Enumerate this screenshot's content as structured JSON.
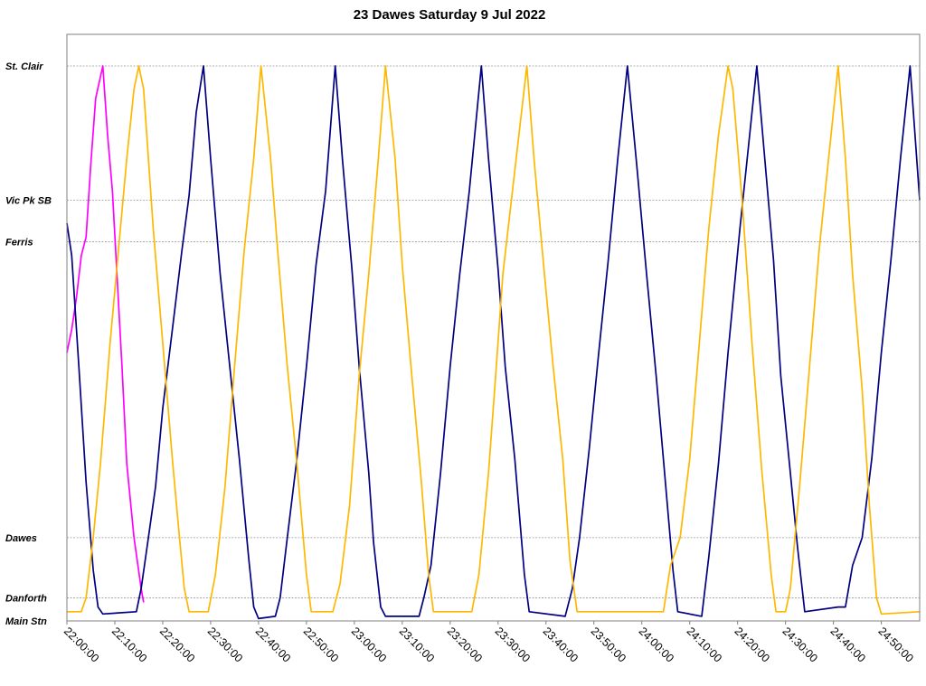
{
  "chart_data": {
    "type": "line",
    "title": "23 Dawes Saturday 9 Jul 2022",
    "xlabel": "",
    "ylabel": "",
    "x_ticks": [
      "22:00:00",
      "22:10:00",
      "22:20:00",
      "22:30:00",
      "22:40:00",
      "22:50:00",
      "23:00:00",
      "23:10:00",
      "23:20:00",
      "23:30:00",
      "23:40:00",
      "23:50:00",
      "24:00:00",
      "24:10:00",
      "24:20:00",
      "24:30:00",
      "24:40:00",
      "24:50:00"
    ],
    "xlim": [
      "22:00:00",
      "24:58:00"
    ],
    "y_stops": [
      {
        "label": "St. Clair",
        "value": 12.0,
        "gridline": true
      },
      {
        "label": "Vic Pk SB",
        "value": 9.1,
        "gridline": true
      },
      {
        "label": "Ferris",
        "value": 8.2,
        "gridline": true
      },
      {
        "label": "Dawes",
        "value": 1.8,
        "gridline": true
      },
      {
        "label": "Danforth",
        "value": 0.5,
        "gridline": true
      },
      {
        "label": "Main Stn",
        "value": 0.0,
        "gridline": false
      }
    ],
    "ylim": [
      0,
      12.6
    ],
    "grid": true,
    "legend": "none",
    "series": [
      {
        "color": "#ff00ff",
        "points": [
          [
            "22:00:00",
            5.8
          ],
          [
            "22:01:00",
            6.3
          ],
          [
            "22:02:00",
            7.0
          ],
          [
            "22:03:00",
            7.9
          ],
          [
            "22:04:00",
            8.3
          ],
          [
            "22:05:00",
            9.9
          ],
          [
            "22:06:00",
            11.3
          ],
          [
            "22:07:30",
            12.0
          ],
          [
            "22:08:30",
            10.5
          ],
          [
            "22:09:30",
            9.3
          ],
          [
            "22:10:30",
            7.4
          ],
          [
            "22:11:30",
            5.5
          ],
          [
            "22:12:30",
            3.4
          ],
          [
            "22:14:00",
            1.8
          ],
          [
            "22:15:30",
            0.7
          ],
          [
            "22:16:00",
            0.4
          ]
        ]
      },
      {
        "color": "#000080",
        "points": [
          [
            "22:00:00",
            8.6
          ],
          [
            "22:01:00",
            7.9
          ],
          [
            "22:02:30",
            5.5
          ],
          [
            "22:04:00",
            3.0
          ],
          [
            "22:05:30",
            1.1
          ],
          [
            "22:06:30",
            0.3
          ],
          [
            "22:07:30",
            0.15
          ],
          [
            "22:14:30",
            0.2
          ],
          [
            "22:15:30",
            0.7
          ],
          [
            "22:17:00",
            1.8
          ],
          [
            "22:18:30",
            2.9
          ],
          [
            "22:20:00",
            4.6
          ],
          [
            "22:22:00",
            6.3
          ],
          [
            "22:24:00",
            8.0
          ],
          [
            "22:25:30",
            9.2
          ],
          [
            "22:27:00",
            11.0
          ],
          [
            "22:28:30",
            12.0
          ],
          [
            "22:30:00",
            10.0
          ],
          [
            "22:32:00",
            7.5
          ],
          [
            "22:34:00",
            5.5
          ],
          [
            "22:36:00",
            3.5
          ],
          [
            "22:38:00",
            1.3
          ],
          [
            "22:39:00",
            0.3
          ],
          [
            "22:40:00",
            0.05
          ],
          [
            "22:43:30",
            0.1
          ],
          [
            "22:44:30",
            0.5
          ],
          [
            "22:46:00",
            1.8
          ],
          [
            "22:48:00",
            3.5
          ],
          [
            "22:50:00",
            5.5
          ],
          [
            "22:52:00",
            7.7
          ],
          [
            "22:54:00",
            9.3
          ],
          [
            "22:56:00",
            12.0
          ],
          [
            "22:57:30",
            10.0
          ],
          [
            "22:59:30",
            7.6
          ],
          [
            "23:01:00",
            5.5
          ],
          [
            "23:03:00",
            3.2
          ],
          [
            "23:04:00",
            1.7
          ],
          [
            "23:05:30",
            0.3
          ],
          [
            "23:06:30",
            0.1
          ],
          [
            "23:13:30",
            0.1
          ],
          [
            "23:14:30",
            0.5
          ],
          [
            "23:16:00",
            1.2
          ],
          [
            "23:18:00",
            3.2
          ],
          [
            "23:20:00",
            5.5
          ],
          [
            "23:22:00",
            7.5
          ],
          [
            "23:24:00",
            9.3
          ],
          [
            "23:26:30",
            12.0
          ],
          [
            "23:28:00",
            10.0
          ],
          [
            "23:30:00",
            7.6
          ],
          [
            "23:31:30",
            5.5
          ],
          [
            "23:33:30",
            3.5
          ],
          [
            "23:35:30",
            1.0
          ],
          [
            "23:36:30",
            0.2
          ],
          [
            "23:44:00",
            0.1
          ],
          [
            "23:45:30",
            0.7
          ],
          [
            "23:47:00",
            1.8
          ],
          [
            "23:49:00",
            3.7
          ],
          [
            "23:51:00",
            5.8
          ],
          [
            "23:53:00",
            7.8
          ],
          [
            "23:55:00",
            10.0
          ],
          [
            "23:57:00",
            12.0
          ],
          [
            "23:59:00",
            9.8
          ],
          [
            "24:01:00",
            7.5
          ],
          [
            "24:03:00",
            5.3
          ],
          [
            "24:04:30",
            3.5
          ],
          [
            "24:06:30",
            1.1
          ],
          [
            "24:07:30",
            0.2
          ],
          [
            "24:12:30",
            0.1
          ],
          [
            "24:14:00",
            1.4
          ],
          [
            "24:16:00",
            3.4
          ],
          [
            "24:18:00",
            5.8
          ],
          [
            "24:20:30",
            8.5
          ],
          [
            "24:22:00",
            10.0
          ],
          [
            "24:24:00",
            12.0
          ],
          [
            "24:25:30",
            10.2
          ],
          [
            "24:27:30",
            7.8
          ],
          [
            "24:29:00",
            5.3
          ],
          [
            "24:31:00",
            3.2
          ],
          [
            "24:32:30",
            1.6
          ],
          [
            "24:34:00",
            0.2
          ],
          [
            "24:41:00",
            0.3
          ],
          [
            "24:42:30",
            0.3
          ],
          [
            "24:44:00",
            1.2
          ],
          [
            "24:46:00",
            1.8
          ],
          [
            "24:48:00",
            3.5
          ],
          [
            "24:50:00",
            5.8
          ],
          [
            "24:52:00",
            7.8
          ],
          [
            "24:54:00",
            10.0
          ],
          [
            "24:56:00",
            12.0
          ],
          [
            "24:58:00",
            9.1
          ]
        ]
      },
      {
        "color": "#ffb800",
        "points": [
          [
            "22:00:00",
            0.2
          ],
          [
            "22:03:00",
            0.2
          ],
          [
            "22:04:00",
            0.5
          ],
          [
            "22:05:30",
            1.8
          ],
          [
            "22:07:00",
            3.4
          ],
          [
            "22:09:00",
            6.0
          ],
          [
            "22:11:00",
            8.3
          ],
          [
            "22:12:30",
            10.0
          ],
          [
            "22:14:00",
            11.5
          ],
          [
            "22:15:00",
            12.0
          ],
          [
            "22:16:00",
            11.5
          ],
          [
            "22:18:00",
            8.5
          ],
          [
            "22:20:00",
            6.0
          ],
          [
            "22:22:00",
            3.5
          ],
          [
            "22:23:30",
            1.8
          ],
          [
            "22:24:30",
            0.7
          ],
          [
            "22:25:30",
            0.2
          ],
          [
            "22:29:30",
            0.2
          ],
          [
            "22:31:00",
            1.0
          ],
          [
            "22:33:00",
            2.9
          ],
          [
            "22:35:00",
            5.5
          ],
          [
            "22:37:00",
            8.0
          ],
          [
            "22:39:00",
            10.0
          ],
          [
            "22:40:30",
            12.0
          ],
          [
            "22:42:30",
            10.0
          ],
          [
            "22:44:00",
            8.0
          ],
          [
            "22:46:00",
            5.5
          ],
          [
            "22:48:00",
            3.4
          ],
          [
            "22:50:00",
            1.0
          ],
          [
            "22:51:00",
            0.2
          ],
          [
            "22:55:30",
            0.2
          ],
          [
            "22:57:00",
            0.8
          ],
          [
            "22:59:00",
            2.5
          ],
          [
            "23:01:00",
            5.3
          ],
          [
            "23:03:00",
            7.5
          ],
          [
            "23:05:00",
            10.0
          ],
          [
            "23:06:30",
            12.0
          ],
          [
            "23:08:30",
            10.0
          ],
          [
            "23:10:00",
            7.7
          ],
          [
            "23:12:00",
            5.3
          ],
          [
            "23:14:00",
            3.0
          ],
          [
            "23:15:30",
            1.0
          ],
          [
            "23:16:30",
            0.2
          ],
          [
            "23:24:30",
            0.2
          ],
          [
            "23:26:00",
            1.0
          ],
          [
            "23:28:00",
            3.2
          ],
          [
            "23:29:30",
            5.3
          ],
          [
            "23:31:00",
            7.5
          ],
          [
            "23:33:00",
            9.3
          ],
          [
            "23:36:00",
            12.0
          ],
          [
            "23:37:30",
            10.0
          ],
          [
            "23:39:30",
            7.7
          ],
          [
            "23:41:30",
            5.5
          ],
          [
            "23:43:30",
            3.5
          ],
          [
            "23:45:00",
            1.3
          ],
          [
            "23:46:30",
            0.2
          ],
          [
            "24:04:30",
            0.2
          ],
          [
            "24:06:00",
            1.2
          ],
          [
            "24:08:00",
            1.8
          ],
          [
            "24:10:00",
            3.5
          ],
          [
            "24:12:00",
            6.0
          ],
          [
            "24:14:00",
            8.5
          ],
          [
            "24:16:00",
            10.5
          ],
          [
            "24:18:00",
            12.0
          ],
          [
            "24:19:00",
            11.5
          ],
          [
            "24:21:00",
            9.0
          ],
          [
            "24:23:00",
            6.0
          ],
          [
            "24:25:00",
            3.3
          ],
          [
            "24:27:00",
            1.0
          ],
          [
            "24:28:00",
            0.2
          ],
          [
            "24:30:00",
            0.2
          ],
          [
            "24:31:00",
            0.7
          ],
          [
            "24:33:00",
            3.0
          ],
          [
            "24:35:00",
            5.5
          ],
          [
            "24:37:00",
            8.0
          ],
          [
            "24:39:00",
            10.0
          ],
          [
            "24:41:00",
            12.0
          ],
          [
            "24:42:30",
            10.0
          ],
          [
            "24:44:00",
            7.5
          ],
          [
            "24:46:00",
            5.0
          ],
          [
            "24:47:30",
            2.5
          ],
          [
            "24:49:00",
            0.5
          ],
          [
            "24:50:00",
            0.15
          ],
          [
            "24:58:00",
            0.2
          ]
        ]
      }
    ]
  }
}
